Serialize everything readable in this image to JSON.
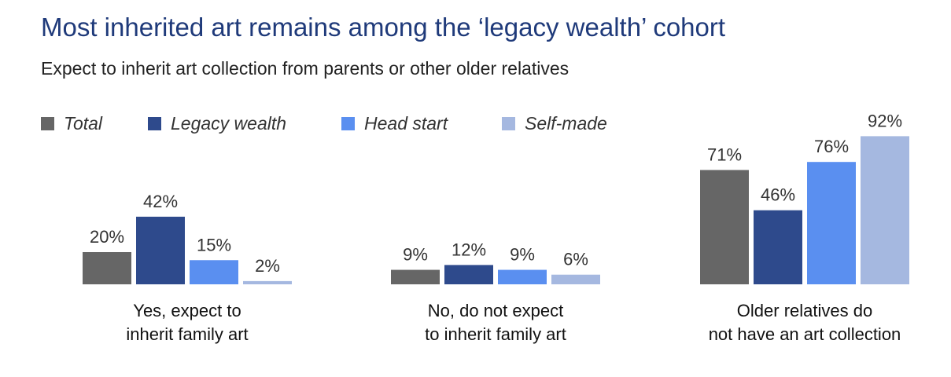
{
  "title": "Most inherited art remains among the ‘legacy wealth’ cohort",
  "subtitle": "Expect to inherit art collection from parents or other older relatives",
  "chart_data": {
    "type": "bar",
    "categories": [
      [
        "Yes, expect to",
        "inherit family art"
      ],
      [
        "No, do not expect",
        "to inherit family art"
      ],
      [
        "Older relatives do",
        "not have an art collection"
      ]
    ],
    "series": [
      {
        "name": "Total",
        "values": [
          20,
          9,
          71
        ],
        "labels": [
          "20%",
          "9%",
          "71%"
        ],
        "color": "#666666"
      },
      {
        "name": "Legacy wealth",
        "values": [
          42,
          12,
          46
        ],
        "labels": [
          "42%",
          "12%",
          "46%"
        ],
        "color": "#2e4a8c"
      },
      {
        "name": "Head start",
        "values": [
          15,
          9,
          76
        ],
        "labels": [
          "15%",
          "9%",
          "76%"
        ],
        "color": "#5a8ff0"
      },
      {
        "name": "Self-made",
        "values": [
          2,
          6,
          92
        ],
        "labels": [
          "2%",
          "6%",
          "92%"
        ],
        "color": "#a5b8e0"
      }
    ],
    "ylim": [
      0,
      100
    ],
    "legend": "top-left",
    "grid": false,
    "y_axis_visible": false
  }
}
